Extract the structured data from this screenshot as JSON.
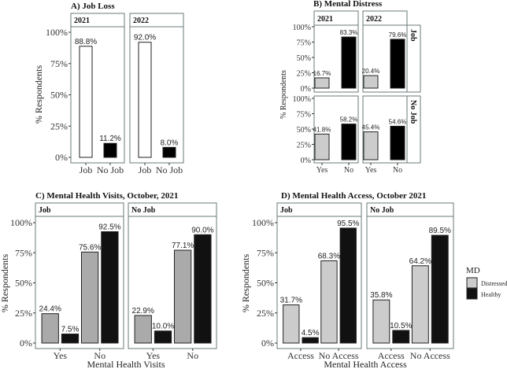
{
  "chart_data": [
    {
      "type": "bar",
      "title": "A) Job Loss",
      "ylabel": "% Respondents",
      "xlabel": "",
      "ylim": [
        0,
        100
      ],
      "yticks": [
        "0%",
        "25%",
        "50%",
        "75%",
        "100%"
      ],
      "facets": [
        {
          "strip": "2021",
          "categories": [
            "Job",
            "No Job"
          ],
          "values": [
            88.8,
            11.2
          ],
          "labels": [
            "88.8%",
            "11.2%"
          ]
        },
        {
          "strip": "2022",
          "categories": [
            "Job",
            "No Job"
          ],
          "values": [
            92.0,
            8.0
          ],
          "labels": [
            "92.0%",
            "8.0%"
          ]
        }
      ],
      "colors": [
        "#ffffff",
        "#000000"
      ]
    },
    {
      "type": "bar",
      "title": "B) Mental Distress",
      "ylabel": "% Respondents",
      "xlabel": "",
      "ylim": [
        0,
        100
      ],
      "yticks": [
        "0%",
        "25%",
        "50%",
        "75%",
        "100%"
      ],
      "col_strips": [
        "2021",
        "2022"
      ],
      "row_strips": [
        "Job",
        "No Job"
      ],
      "facets": [
        {
          "row": "Job",
          "col": "2021",
          "categories": [
            "Yes",
            "No"
          ],
          "values": [
            16.7,
            83.3
          ],
          "labels": [
            "16.7%",
            "83.3%"
          ]
        },
        {
          "row": "Job",
          "col": "2022",
          "categories": [
            "Yes",
            "No"
          ],
          "values": [
            20.4,
            79.6
          ],
          "labels": [
            "20.4%",
            "79.6%"
          ]
        },
        {
          "row": "No Job",
          "col": "2021",
          "categories": [
            "Yes",
            "No"
          ],
          "values": [
            41.8,
            58.2
          ],
          "labels": [
            "41.8%",
            "58.2%"
          ]
        },
        {
          "row": "No Job",
          "col": "2022",
          "categories": [
            "Yes",
            "No"
          ],
          "values": [
            45.4,
            54.6
          ],
          "labels": [
            "45.4%",
            "54.6%"
          ]
        }
      ],
      "colors": [
        "#cccccc",
        "#000000"
      ]
    },
    {
      "type": "bar",
      "title": "C) Mental Health Visits, October, 2021",
      "ylabel": "% Respondents",
      "xlabel": "Mental Health Visits",
      "ylim": [
        0,
        100
      ],
      "yticks": [
        "0%",
        "25%",
        "50%",
        "75%",
        "100%"
      ],
      "series": [
        "Distressed",
        "Healthy"
      ],
      "facets": [
        {
          "strip": "Job",
          "categories": [
            "Yes",
            "No"
          ],
          "values": [
            [
              24.4,
              7.5
            ],
            [
              75.6,
              92.5
            ]
          ],
          "labels": [
            [
              "24.4%",
              "7.5%"
            ],
            [
              "75.6%",
              "92.5%"
            ]
          ]
        },
        {
          "strip": "No Job",
          "categories": [
            "Yes",
            "No"
          ],
          "values": [
            [
              22.9,
              10.0
            ],
            [
              77.1,
              90.0
            ]
          ],
          "labels": [
            [
              "22.9%",
              "10.0%"
            ],
            [
              "77.1%",
              "90.0%"
            ]
          ]
        }
      ],
      "colors": [
        "#aaaaaa",
        "#111111"
      ]
    },
    {
      "type": "bar",
      "title": "D) Mental Health Access, October 2021",
      "ylabel": "",
      "xlabel": "Mental Health Access",
      "ylim": [
        0,
        100
      ],
      "yticks": [
        "0%",
        "25%",
        "50%",
        "75%",
        "100%"
      ],
      "series": [
        "Distressed",
        "Healthy"
      ],
      "facets": [
        {
          "strip": "Job",
          "categories": [
            "Access",
            "No Access"
          ],
          "values": [
            [
              31.7,
              4.5
            ],
            [
              68.3,
              95.5
            ]
          ],
          "labels": [
            [
              "31.7%",
              "4.5%"
            ],
            [
              "68.3%",
              "95.5%"
            ]
          ]
        },
        {
          "strip": "No Job",
          "categories": [
            "Access",
            "No Access"
          ],
          "values": [
            [
              35.8,
              10.5
            ],
            [
              64.2,
              89.5
            ]
          ],
          "labels": [
            [
              "35.8%",
              "10.5%"
            ],
            [
              "64.2%",
              "89.5%"
            ]
          ]
        }
      ],
      "colors": [
        "#cccccc",
        "#111111"
      ]
    }
  ],
  "legend": {
    "title": "MD",
    "items": [
      "Distressed",
      "Healthy"
    ],
    "colors": [
      "#cccccc",
      "#111111"
    ],
    "placement": "right"
  }
}
